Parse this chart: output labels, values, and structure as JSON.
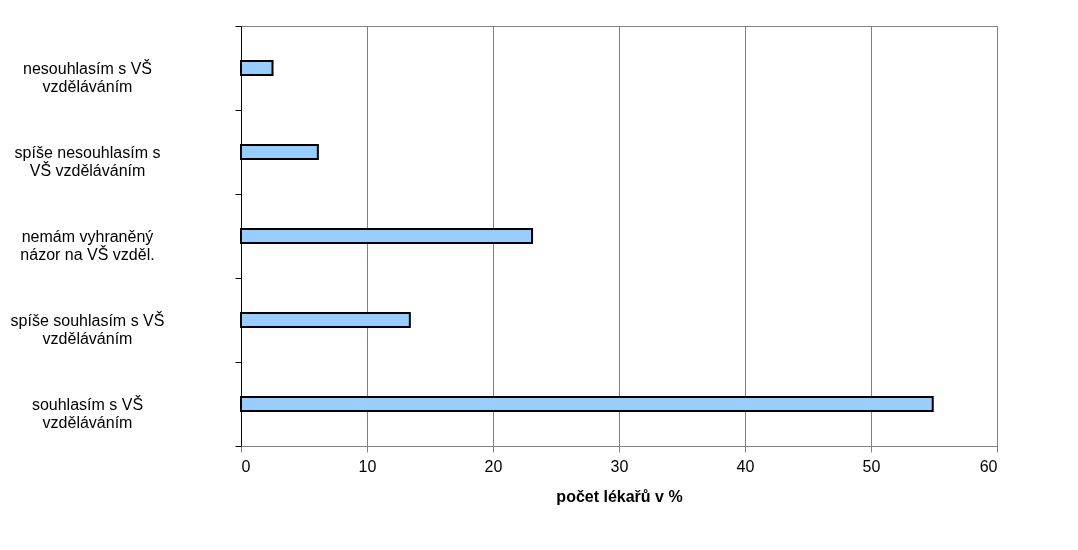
{
  "chart_data": {
    "type": "bar",
    "orientation": "horizontal",
    "xlabel": "počet lékařů v %",
    "categories": [
      "nesouhlasím s VŠ vzděláváním",
      "spíše nesouhlasím s VŠ vzděláváním",
      "nemám vyhraněný názor na VŠ vzděl.",
      "spíše souhlasím s VŠ vzděláváním",
      "souhlasím s VŠ vzděláváním"
    ],
    "values": [
      2.5,
      6.1,
      23.1,
      13.4,
      54.9
    ],
    "color": "#99ccff",
    "xlim": [
      0,
      60
    ],
    "xticks": [
      0,
      10,
      20,
      30,
      40,
      50,
      60
    ],
    "grid": "x"
  }
}
